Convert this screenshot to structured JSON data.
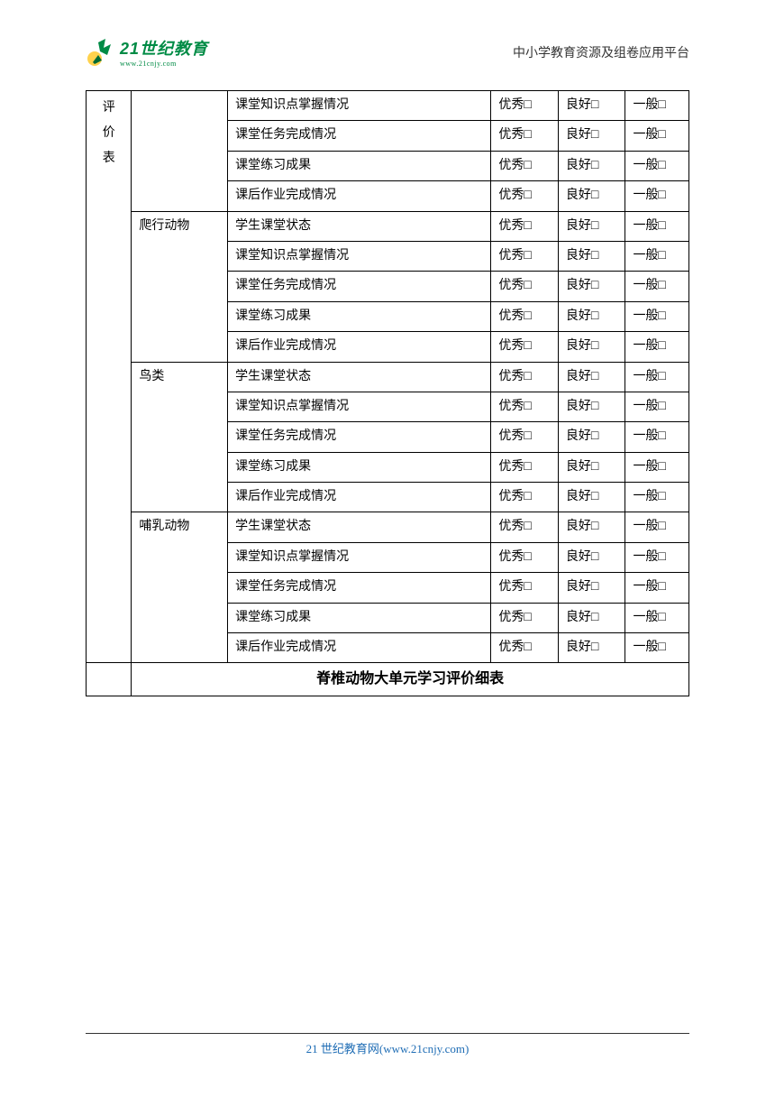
{
  "header": {
    "logo_main": "21世纪教育",
    "logo_sub": "www.21cnjy.com",
    "right_text": "中小学教育资源及组卷应用平台"
  },
  "table": {
    "col_a_label": "评价表",
    "groups": [
      {
        "name": "",
        "items": [
          "课堂知识点掌握情况",
          "课堂任务完成情况",
          "课堂练习成果",
          "课后作业完成情况"
        ]
      },
      {
        "name": "爬行动物",
        "items": [
          "学生课堂状态",
          "课堂知识点掌握情况",
          "课堂任务完成情况",
          "课堂练习成果",
          "课后作业完成情况"
        ]
      },
      {
        "name": "鸟类",
        "items": [
          "学生课堂状态",
          "课堂知识点掌握情况",
          "课堂任务完成情况",
          "课堂练习成果",
          "课后作业完成情况"
        ]
      },
      {
        "name": "哺乳动物",
        "items": [
          "学生课堂状态",
          "课堂知识点掌握情况",
          "课堂任务完成情况",
          "课堂练习成果",
          "课后作业完成情况"
        ]
      }
    ],
    "rating_labels": {
      "excellent": "优秀",
      "good": "良好",
      "normal": "一般"
    },
    "checkbox_glyph": "□",
    "footer_title": "脊椎动物大单元学习评价细表"
  },
  "footer": {
    "text": "21 世纪教育网(www.21cnjy.com)"
  },
  "colors": {
    "logo_green": "#008b45",
    "footer_link": "#1f6db5",
    "border": "#000000",
    "bg": "#ffffff"
  }
}
